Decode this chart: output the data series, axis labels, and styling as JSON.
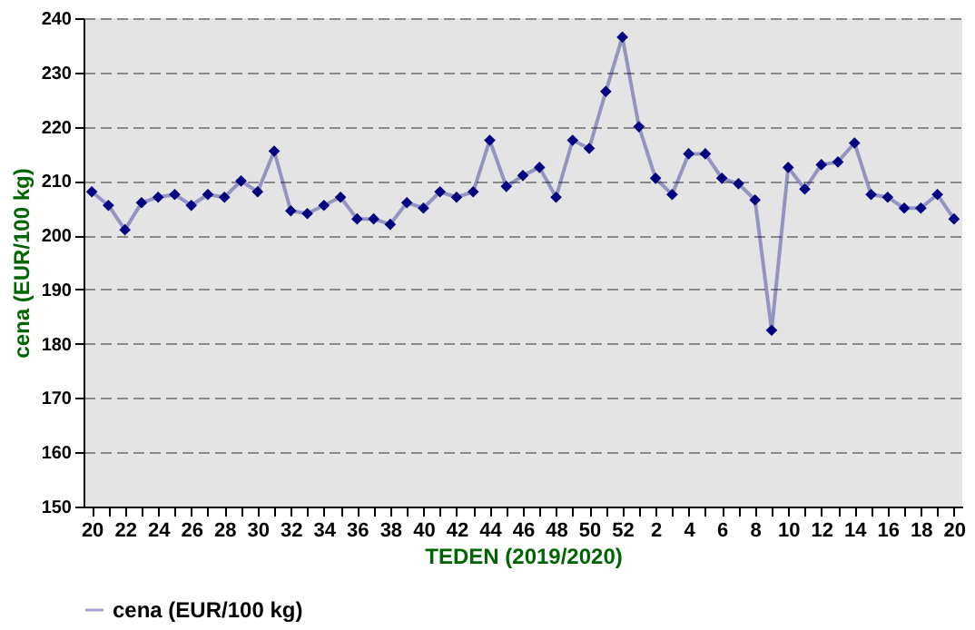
{
  "chart_data": {
    "type": "line",
    "xlabel": "TEDEN (2019/2020)",
    "ylabel": "cena (EUR/100 kg)",
    "categories": [
      "20",
      null,
      "22",
      null,
      "24",
      null,
      "26",
      null,
      "28",
      null,
      "30",
      null,
      "32",
      null,
      "34",
      null,
      "36",
      null,
      "38",
      null,
      "40",
      null,
      "42",
      null,
      "44",
      null,
      "46",
      null,
      "48",
      null,
      "50",
      null,
      "52",
      null,
      "2",
      null,
      "4",
      null,
      "6",
      null,
      "8",
      null,
      "10",
      null,
      "12",
      null,
      "14",
      null,
      "16",
      null,
      "18",
      null,
      "20"
    ],
    "series": [
      {
        "name": "cena (EUR/100 kg)",
        "color": "#000080",
        "values": [
          208,
          205.5,
          201,
          206,
          207,
          207.5,
          205.5,
          207.5,
          207,
          210,
          208,
          215.5,
          204.5,
          204,
          205.5,
          207,
          203,
          203,
          202,
          206,
          205,
          208,
          207,
          208,
          217.5,
          209,
          211,
          212.5,
          207,
          217.5,
          216,
          226.5,
          236.5,
          220,
          210.5,
          207.5,
          215,
          215,
          210.5,
          209.5,
          206.5,
          182.5,
          212.5,
          208.5,
          213,
          213.5,
          217,
          207.5,
          207,
          205,
          205,
          207.5,
          203
        ]
      }
    ],
    "ylim": [
      150,
      240
    ],
    "yticks": [
      150,
      160,
      170,
      180,
      190,
      200,
      210,
      220,
      230,
      240
    ],
    "grid": "y",
    "legend": "bottom",
    "marker": "diamond",
    "line_style": "solid"
  }
}
